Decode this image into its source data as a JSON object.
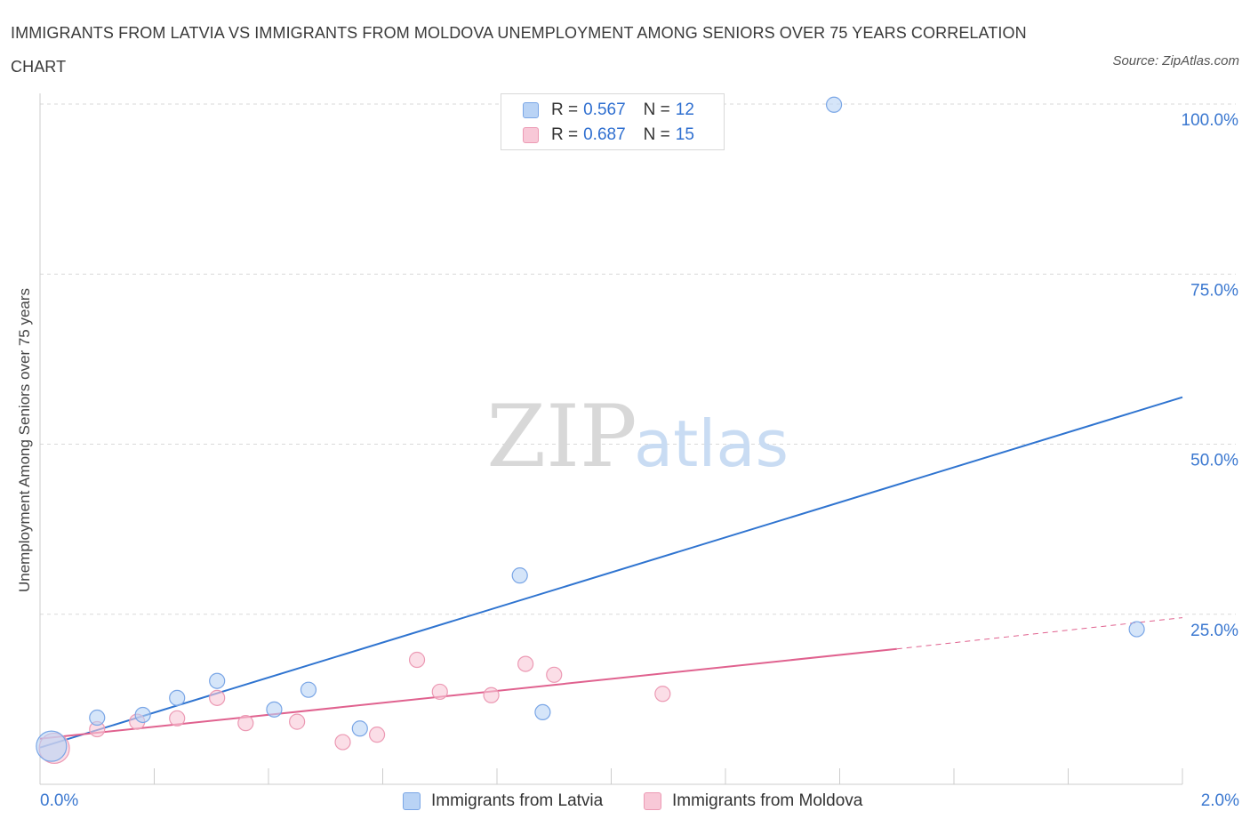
{
  "title": "IMMIGRANTS FROM LATVIA VS IMMIGRANTS FROM MOLDOVA UNEMPLOYMENT AMONG SENIORS OVER 75 YEARS CORRELATION CHART",
  "source": "Source: ZipAtlas.com",
  "watermark": {
    "zip": "ZIP",
    "atlas": "atlas"
  },
  "legend": {
    "rows": [
      {
        "r_label": "R = ",
        "r_value": "0.567",
        "n_label": "N = ",
        "n_value": "12"
      },
      {
        "r_label": "R = ",
        "r_value": "0.687",
        "n_label": "N = ",
        "n_value": "15"
      }
    ]
  },
  "colors": {
    "latvia_fill": "#b9d3f5",
    "latvia_stroke": "#7aa6e6",
    "latvia_line": "#2f74d0",
    "moldova_fill": "#f8c8d7",
    "moldova_stroke": "#ec9ab4",
    "moldova_line": "#e0628f",
    "grid": "#d9d9d9",
    "axis_text": "#3b78d0"
  },
  "chart_data": {
    "type": "scatter",
    "title": "IMMIGRANTS FROM LATVIA VS IMMIGRANTS FROM MOLDOVA UNEMPLOYMENT AMONG SENIORS OVER 75 YEARS CORRELATION CHART",
    "xlabel": "",
    "ylabel": "Unemployment Among Seniors over 75 years",
    "xlim": [
      0,
      2.0
    ],
    "ylim": [
      0,
      100
    ],
    "x_tick_labels": [
      "0.0%",
      "2.0%"
    ],
    "y_tick_labels": [
      "100.0%",
      "75.0%",
      "50.0%",
      "25.0%"
    ],
    "y_ticks": [
      100,
      75,
      50,
      25
    ],
    "series": [
      {
        "name": "Immigrants from Latvia",
        "points": [
          {
            "x": 0.02,
            "y": 5.6,
            "big": true
          },
          {
            "x": 0.1,
            "y": 9.8
          },
          {
            "x": 0.18,
            "y": 10.2
          },
          {
            "x": 0.24,
            "y": 12.7
          },
          {
            "x": 0.31,
            "y": 15.2
          },
          {
            "x": 0.41,
            "y": 11.0
          },
          {
            "x": 0.47,
            "y": 13.9
          },
          {
            "x": 0.56,
            "y": 8.2
          },
          {
            "x": 0.84,
            "y": 30.7
          },
          {
            "x": 0.88,
            "y": 10.6
          },
          {
            "x": 1.39,
            "y": 99.9
          },
          {
            "x": 1.92,
            "y": 22.8
          }
        ],
        "trend": {
          "x1": 0.0,
          "y1": 5.4,
          "x2": 2.0,
          "y2": 56.9
        }
      },
      {
        "name": "Immigrants from Moldova",
        "points": [
          {
            "x": 0.025,
            "y": 5.3,
            "big": true
          },
          {
            "x": 0.1,
            "y": 8.1
          },
          {
            "x": 0.17,
            "y": 9.2
          },
          {
            "x": 0.24,
            "y": 9.7
          },
          {
            "x": 0.31,
            "y": 12.7
          },
          {
            "x": 0.36,
            "y": 9.0
          },
          {
            "x": 0.45,
            "y": 9.2
          },
          {
            "x": 0.53,
            "y": 6.2
          },
          {
            "x": 0.59,
            "y": 7.3
          },
          {
            "x": 0.66,
            "y": 18.3
          },
          {
            "x": 0.7,
            "y": 13.6
          },
          {
            "x": 0.79,
            "y": 13.1
          },
          {
            "x": 0.85,
            "y": 17.7
          },
          {
            "x": 0.9,
            "y": 16.1
          },
          {
            "x": 1.09,
            "y": 13.3
          }
        ],
        "trend": {
          "x1": 0.0,
          "y1": 6.7,
          "x2": 1.5,
          "y2": 19.9
        },
        "trend_dashed": {
          "x1": 1.5,
          "y1": 19.9,
          "x2": 2.0,
          "y2": 24.5
        }
      }
    ]
  }
}
